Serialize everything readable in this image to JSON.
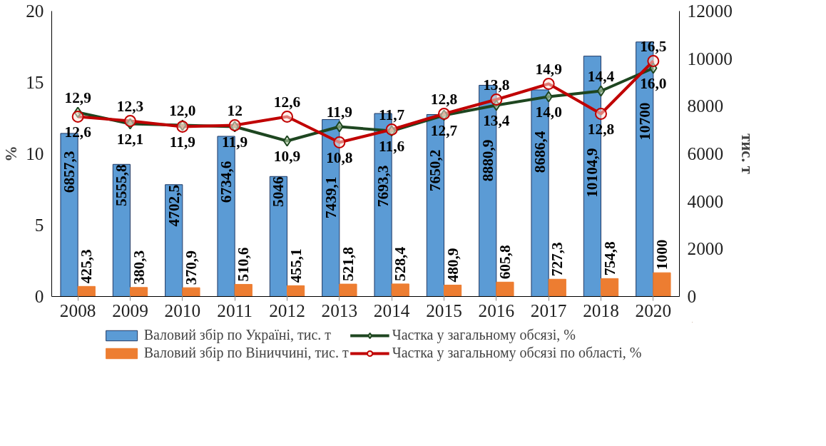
{
  "chart_data": {
    "type": "bar",
    "categories": [
      "2008",
      "2009",
      "2010",
      "2011",
      "2012",
      "2013",
      "2014",
      "2015",
      "2016",
      "2017",
      "2018",
      "2020"
    ],
    "ylabel": "%",
    "y2label": "тис. т",
    "ylim": [
      0,
      20
    ],
    "yticks": [
      0,
      5,
      10,
      15,
      20
    ],
    "y2lim": [
      0,
      12000
    ],
    "y2ticks": [
      0,
      2000,
      4000,
      6000,
      8000,
      10000,
      12000
    ],
    "legend": "bottom",
    "series": [
      {
        "name": "Валовий збір по Україні, тис. т",
        "axis": "y2",
        "color": "#5b9bd5",
        "values": [
          6857.3,
          5555.8,
          4702.5,
          6734.6,
          5046,
          7439.1,
          7693.3,
          7650.2,
          8880.9,
          8686.4,
          10104.9,
          10700
        ],
        "value_labels": [
          "6857,3",
          "5555,8",
          "4702,5",
          "6734,6",
          "5046",
          "7439,1",
          "7693,3",
          "7650,2",
          "8880,9",
          "8686,4",
          "10104,9",
          "10700"
        ]
      },
      {
        "name": "Валовий збір по Віниччині, тис. т",
        "axis": "y2",
        "color": "#ed7d31",
        "values": [
          425.3,
          380.3,
          370.9,
          510.6,
          455.1,
          521.8,
          528.4,
          480.9,
          605.8,
          727.3,
          754.8,
          1000
        ],
        "value_labels": [
          "425,3",
          "380,3",
          "370,9",
          "510,6",
          "455,1",
          "521,8",
          "528,4",
          "480,9",
          "605,8",
          "727,3",
          "754,8",
          "1000"
        ]
      },
      {
        "name": "Частка у загальному обсязі, %",
        "type": "line",
        "marker": "diamond",
        "color": "#1e4620",
        "values": [
          12.9,
          12.1,
          12.0,
          11.9,
          10.9,
          11.9,
          11.6,
          12.7,
          13.4,
          14.0,
          14.4,
          16.0
        ],
        "value_labels": [
          "12,9",
          "12,1",
          "12,0",
          "11,9",
          "10,9",
          "11,9",
          "11,6",
          "12,7",
          "13,4",
          "14,0",
          "14,4",
          "16,0"
        ]
      },
      {
        "name": "Частка у загальному обсязі по області, %",
        "type": "line",
        "marker": "circle",
        "color": "#c00000",
        "values": [
          12.6,
          12.3,
          11.9,
          12,
          12.6,
          10.8,
          11.7,
          12.8,
          13.8,
          14.9,
          12.8,
          16.5
        ],
        "value_labels": [
          "12,6",
          "12,3",
          "11,9",
          "12",
          "12,6",
          "10,8",
          "11,7",
          "12,8",
          "13,8",
          "14,9",
          "12,8",
          "16,5"
        ]
      }
    ]
  }
}
